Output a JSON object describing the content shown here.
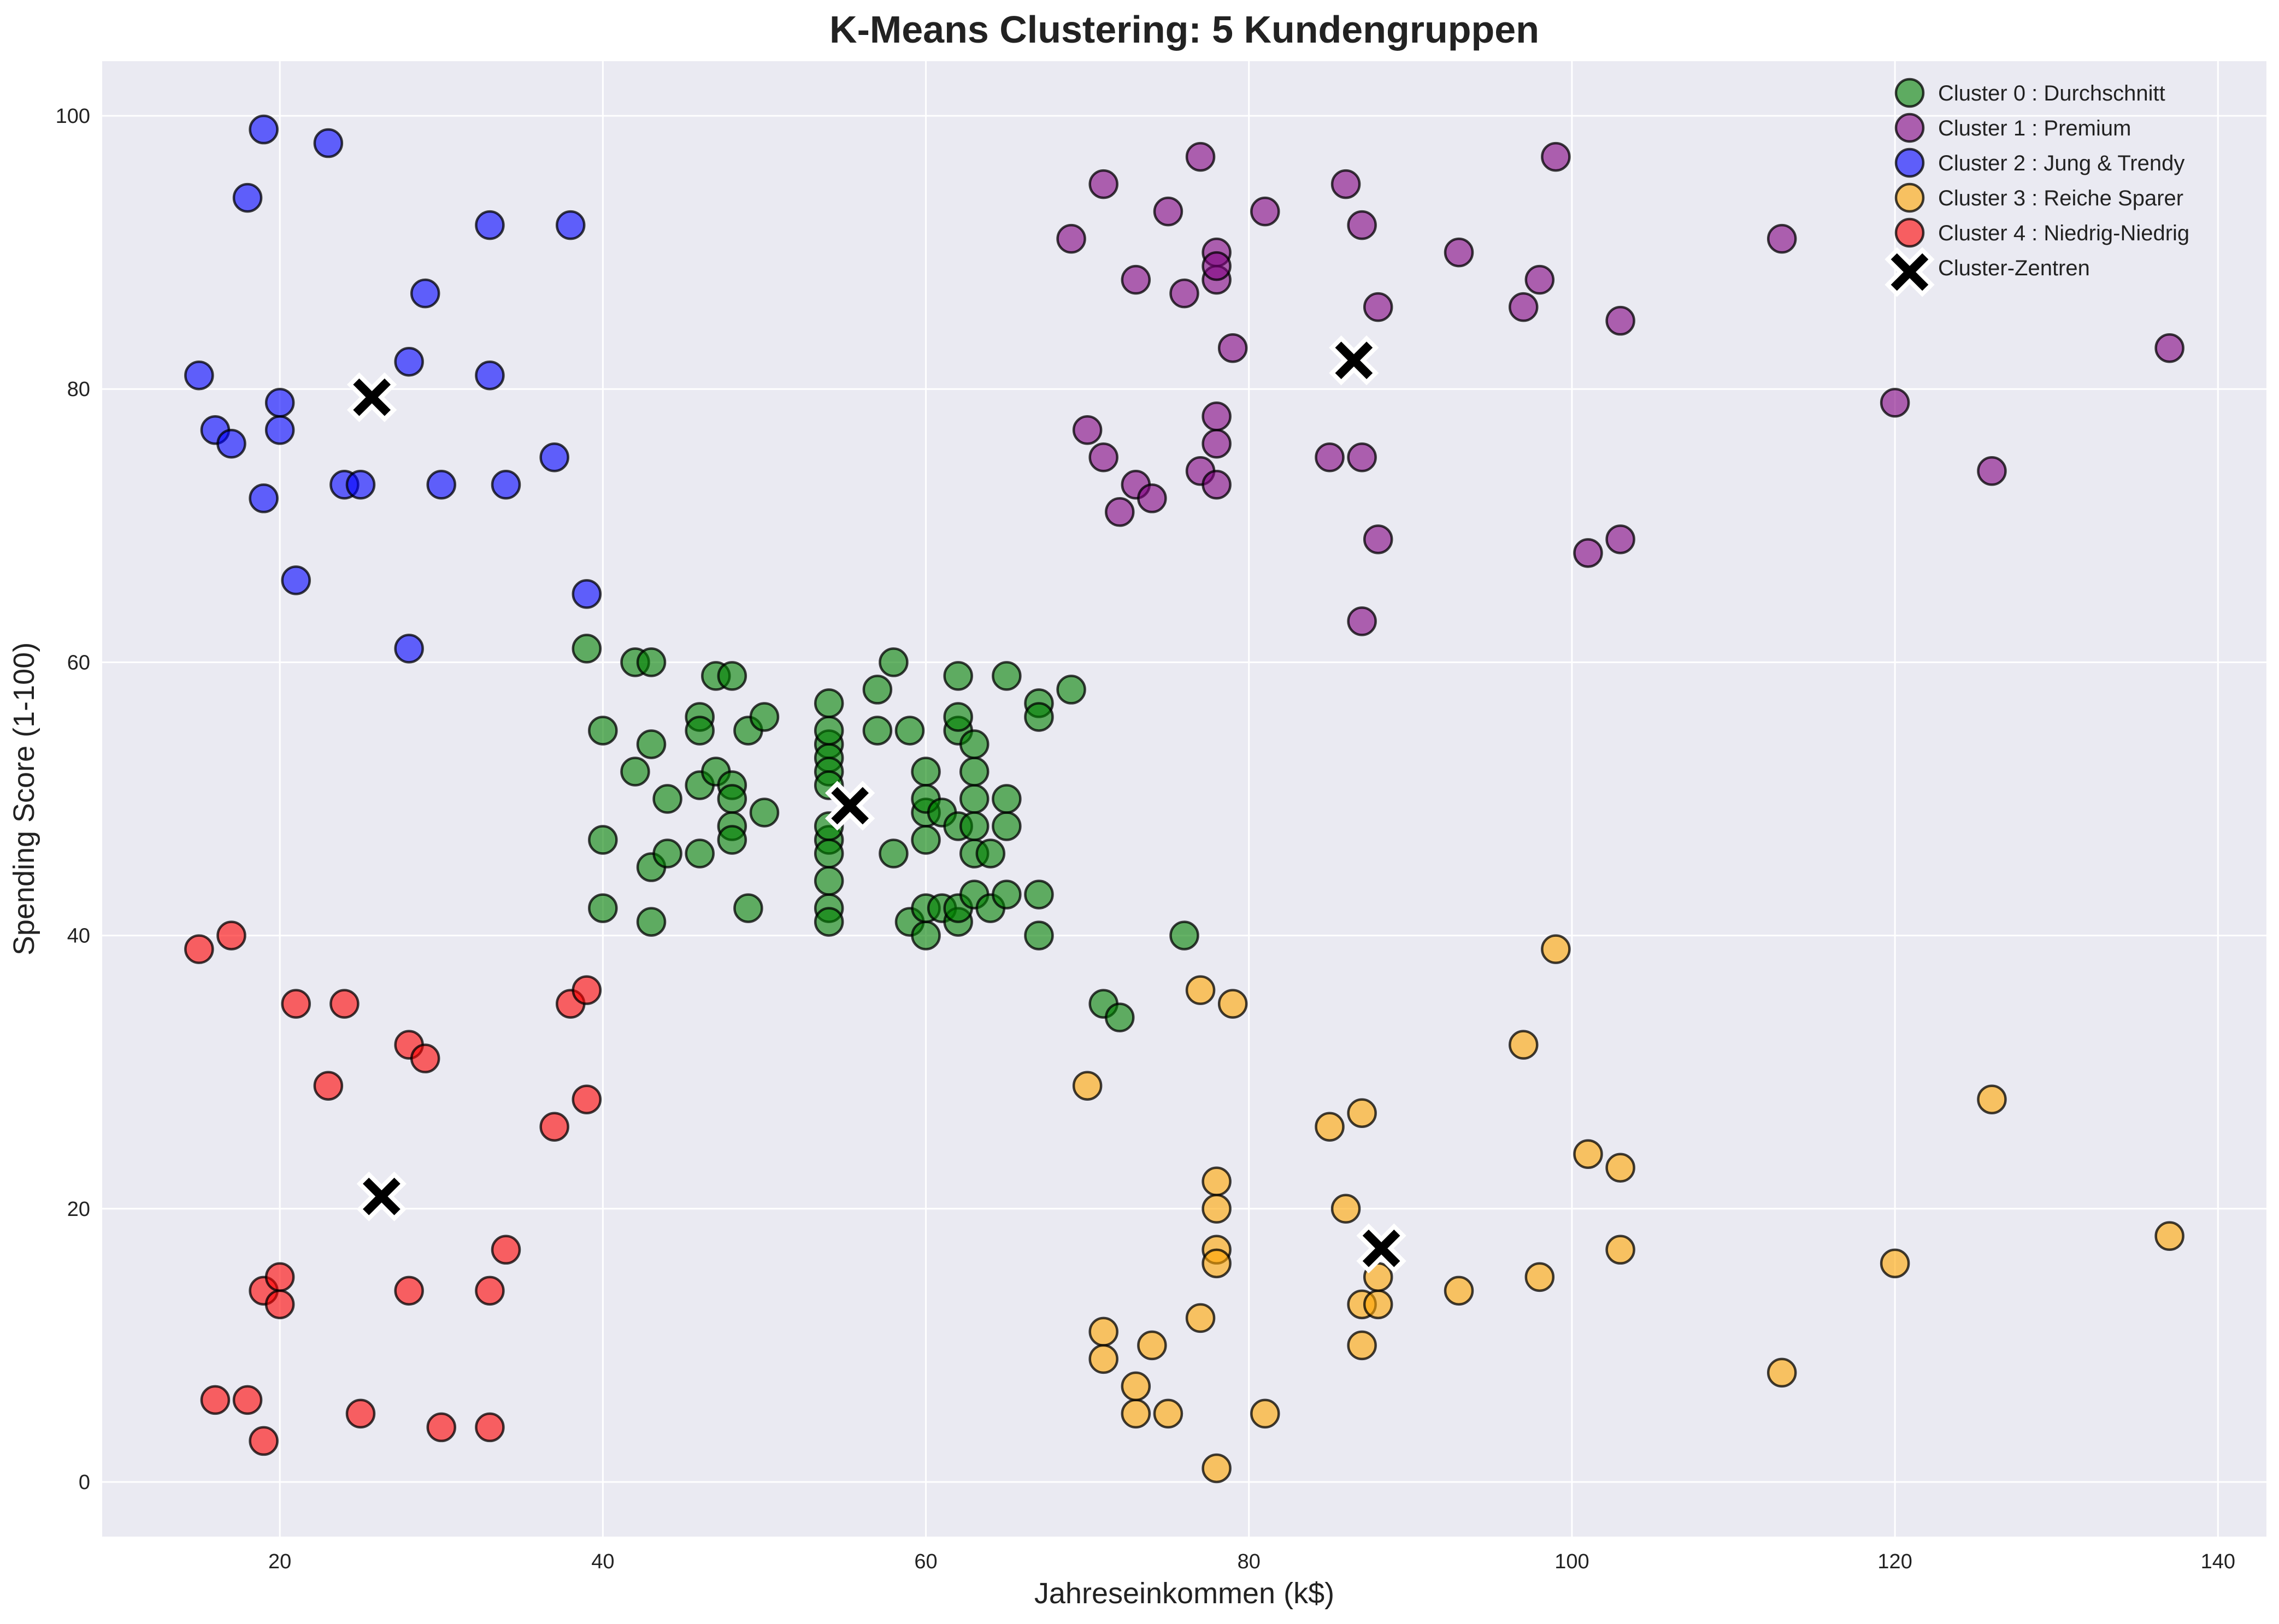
{
  "chart_data": {
    "type": "scatter",
    "title": "K-Means Clustering: 5 Kundengruppen",
    "xlabel": "Jahreseinkommen (k$)",
    "ylabel": "Spending Score (1-100)",
    "xlim": [
      9,
      143
    ],
    "ylim": [
      -4,
      104
    ],
    "xticks": [
      20,
      40,
      60,
      80,
      100,
      120,
      140
    ],
    "yticks": [
      0,
      20,
      40,
      60,
      80,
      100
    ],
    "grid": true,
    "legend_position": "top-right",
    "background": "#eaeaf2",
    "series": [
      {
        "name": "Cluster 0 : Durchschnitt",
        "color": "#008000",
        "points": [
          [
            39,
            61
          ],
          [
            40,
            55
          ],
          [
            40,
            47
          ],
          [
            40,
            42
          ],
          [
            42,
            52
          ],
          [
            42,
            60
          ],
          [
            43,
            60
          ],
          [
            43,
            54
          ],
          [
            43,
            45
          ],
          [
            43,
            41
          ],
          [
            44,
            50
          ],
          [
            44,
            46
          ],
          [
            46,
            51
          ],
          [
            46,
            46
          ],
          [
            46,
            56
          ],
          [
            46,
            55
          ],
          [
            47,
            52
          ],
          [
            47,
            59
          ],
          [
            48,
            51
          ],
          [
            48,
            59
          ],
          [
            48,
            50
          ],
          [
            48,
            48
          ],
          [
            48,
            47
          ],
          [
            49,
            55
          ],
          [
            49,
            42
          ],
          [
            50,
            49
          ],
          [
            50,
            56
          ],
          [
            54,
            47
          ],
          [
            54,
            54
          ],
          [
            54,
            53
          ],
          [
            54,
            48
          ],
          [
            54,
            52
          ],
          [
            54,
            42
          ],
          [
            54,
            51
          ],
          [
            54,
            55
          ],
          [
            54,
            41
          ],
          [
            54,
            44
          ],
          [
            54,
            57
          ],
          [
            54,
            46
          ],
          [
            57,
            58
          ],
          [
            57,
            55
          ],
          [
            58,
            60
          ],
          [
            58,
            46
          ],
          [
            59,
            55
          ],
          [
            59,
            41
          ],
          [
            60,
            49
          ],
          [
            60,
            40
          ],
          [
            60,
            42
          ],
          [
            60,
            52
          ],
          [
            60,
            47
          ],
          [
            60,
            50
          ],
          [
            61,
            42
          ],
          [
            61,
            49
          ],
          [
            62,
            41
          ],
          [
            62,
            48
          ],
          [
            62,
            59
          ],
          [
            62,
            55
          ],
          [
            62,
            56
          ],
          [
            62,
            42
          ],
          [
            63,
            50
          ],
          [
            63,
            46
          ],
          [
            63,
            43
          ],
          [
            63,
            48
          ],
          [
            63,
            52
          ],
          [
            63,
            54
          ],
          [
            64,
            42
          ],
          [
            64,
            46
          ],
          [
            65,
            48
          ],
          [
            65,
            50
          ],
          [
            65,
            43
          ],
          [
            65,
            59
          ],
          [
            67,
            43
          ],
          [
            67,
            57
          ],
          [
            67,
            56
          ],
          [
            67,
            40
          ],
          [
            69,
            58
          ],
          [
            71,
            35
          ],
          [
            72,
            34
          ],
          [
            76,
            40
          ]
        ]
      },
      {
        "name": "Cluster 1 : Premium",
        "color": "#800080",
        "points": [
          [
            69,
            91
          ],
          [
            70,
            77
          ],
          [
            71,
            95
          ],
          [
            71,
            75
          ],
          [
            72,
            71
          ],
          [
            73,
            88
          ],
          [
            73,
            73
          ],
          [
            74,
            72
          ],
          [
            75,
            93
          ],
          [
            76,
            87
          ],
          [
            77,
            97
          ],
          [
            77,
            74
          ],
          [
            78,
            90
          ],
          [
            78,
            88
          ],
          [
            78,
            76
          ],
          [
            78,
            89
          ],
          [
            78,
            78
          ],
          [
            78,
            73
          ],
          [
            79,
            83
          ],
          [
            81,
            93
          ],
          [
            85,
            75
          ],
          [
            86,
            95
          ],
          [
            87,
            63
          ],
          [
            87,
            75
          ],
          [
            87,
            92
          ],
          [
            88,
            69
          ],
          [
            88,
            86
          ],
          [
            93,
            90
          ],
          [
            97,
            86
          ],
          [
            98,
            88
          ],
          [
            99,
            97
          ],
          [
            101,
            68
          ],
          [
            103,
            85
          ],
          [
            103,
            69
          ],
          [
            113,
            91
          ],
          [
            120,
            79
          ],
          [
            126,
            74
          ],
          [
            137,
            83
          ]
        ]
      },
      {
        "name": "Cluster 2 : Jung & Trendy",
        "color": "#0000ff",
        "points": [
          [
            15,
            81
          ],
          [
            16,
            77
          ],
          [
            17,
            76
          ],
          [
            18,
            94
          ],
          [
            19,
            72
          ],
          [
            19,
            99
          ],
          [
            20,
            77
          ],
          [
            20,
            79
          ],
          [
            21,
            66
          ],
          [
            23,
            98
          ],
          [
            24,
            73
          ],
          [
            25,
            73
          ],
          [
            28,
            82
          ],
          [
            28,
            61
          ],
          [
            29,
            87
          ],
          [
            30,
            73
          ],
          [
            33,
            92
          ],
          [
            33,
            81
          ],
          [
            34,
            73
          ],
          [
            37,
            75
          ],
          [
            38,
            92
          ],
          [
            39,
            65
          ]
        ]
      },
      {
        "name": "Cluster 3 : Reiche Sparer",
        "color": "#ffa500",
        "points": [
          [
            70,
            29
          ],
          [
            71,
            11
          ],
          [
            71,
            9
          ],
          [
            73,
            5
          ],
          [
            73,
            7
          ],
          [
            74,
            10
          ],
          [
            75,
            5
          ],
          [
            77,
            12
          ],
          [
            77,
            36
          ],
          [
            78,
            22
          ],
          [
            78,
            17
          ],
          [
            78,
            20
          ],
          [
            78,
            16
          ],
          [
            78,
            1
          ],
          [
            79,
            35
          ],
          [
            81,
            5
          ],
          [
            85,
            26
          ],
          [
            86,
            20
          ],
          [
            87,
            27
          ],
          [
            87,
            13
          ],
          [
            87,
            10
          ],
          [
            88,
            13
          ],
          [
            88,
            15
          ],
          [
            93,
            14
          ],
          [
            97,
            32
          ],
          [
            98,
            15
          ],
          [
            99,
            39
          ],
          [
            101,
            24
          ],
          [
            103,
            17
          ],
          [
            103,
            23
          ],
          [
            113,
            8
          ],
          [
            120,
            16
          ],
          [
            126,
            28
          ],
          [
            137,
            18
          ]
        ]
      },
      {
        "name": "Cluster 4 : Niedrig-Niedrig",
        "color": "#ff0000",
        "points": [
          [
            15,
            39
          ],
          [
            16,
            6
          ],
          [
            17,
            40
          ],
          [
            18,
            6
          ],
          [
            19,
            3
          ],
          [
            19,
            14
          ],
          [
            20,
            15
          ],
          [
            20,
            13
          ],
          [
            21,
            35
          ],
          [
            23,
            29
          ],
          [
            24,
            35
          ],
          [
            25,
            5
          ],
          [
            28,
            14
          ],
          [
            28,
            32
          ],
          [
            29,
            31
          ],
          [
            30,
            4
          ],
          [
            33,
            4
          ],
          [
            33,
            14
          ],
          [
            34,
            17
          ],
          [
            37,
            26
          ],
          [
            38,
            35
          ],
          [
            39,
            36
          ],
          [
            39,
            28
          ]
        ]
      }
    ],
    "centroids": {
      "name": "Cluster-Zentren",
      "color": "#000000",
      "points": [
        [
          55.3,
          49.5
        ],
        [
          86.5,
          82.1
        ],
        [
          25.7,
          79.4
        ],
        [
          88.2,
          17.1
        ],
        [
          26.3,
          20.9
        ]
      ]
    }
  }
}
